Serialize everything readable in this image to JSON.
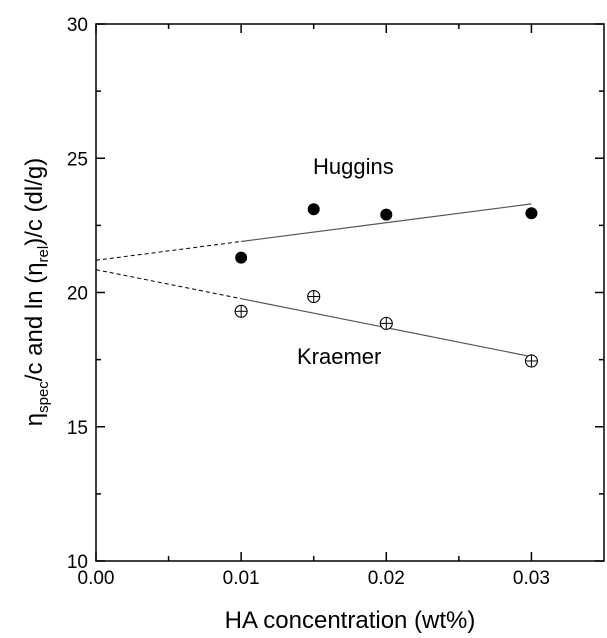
{
  "chart_data": {
    "type": "scatter",
    "xlabel": "HA concentration (wt%)",
    "ylabel_parts": [
      "η",
      "spec",
      "/c and ln (η",
      "rel",
      ")/c (dl/g)"
    ],
    "xlim": [
      0.0,
      0.035
    ],
    "ylim": [
      10,
      30
    ],
    "x_ticks": [
      "0.00",
      "0.01",
      "0.02",
      "0.03"
    ],
    "y_ticks": [
      "10",
      "15",
      "20",
      "25",
      "30"
    ],
    "grid": false,
    "series": [
      {
        "name": "Huggins",
        "marker": "filled-circle",
        "x": [
          0.01,
          0.015,
          0.02,
          0.03
        ],
        "y": [
          21.3,
          23.1,
          22.9,
          22.95
        ],
        "fit_intercept": 21.2,
        "fit_slope": 70
      },
      {
        "name": "Kraemer",
        "marker": "crossed-circle",
        "x": [
          0.01,
          0.015,
          0.02,
          0.03
        ],
        "y": [
          19.3,
          19.85,
          18.85,
          17.45
        ],
        "fit_intercept": 20.85,
        "fit_slope": -108
      }
    ],
    "colors": {
      "axis": "#000000",
      "fit_line": "#555555",
      "marker": "#000000"
    }
  }
}
